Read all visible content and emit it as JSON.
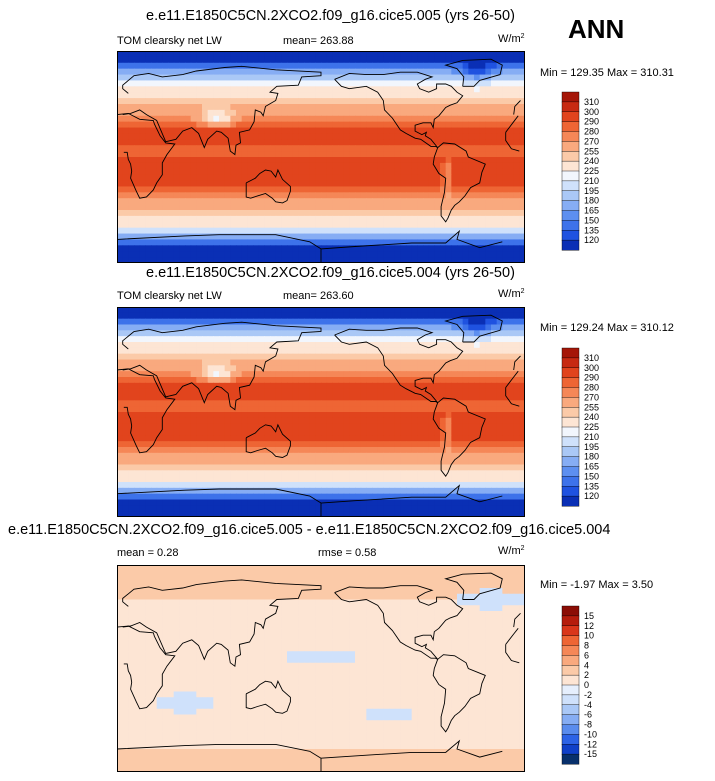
{
  "season": "ANN",
  "colors": {
    "abs_levels": [
      "#08306b",
      "#0a2fb5",
      "#1f52e0",
      "#3d72ea",
      "#5d8ff0",
      "#86adf4",
      "#aac8f6",
      "#cfe1fb",
      "#f2f6fd",
      "#fde5d4",
      "#fbcaa8",
      "#f9a97e",
      "#f58757",
      "#ee6534",
      "#e1441d",
      "#c72a12",
      "#a51608",
      "#7e0b04"
    ],
    "diff_levels": [
      "#08306b",
      "#1040c8",
      "#2d63e6",
      "#5a8ced",
      "#86adf3",
      "#aac8f6",
      "#cfe1fb",
      "#e6effd",
      "#fde5d4",
      "#fbcaa8",
      "#f9a97e",
      "#f58757",
      "#ee6534",
      "#d9361a",
      "#b51c0c",
      "#8b0d05"
    ]
  },
  "chart_data": [
    {
      "type": "heatmap",
      "title": "e.e11.E1850C5CN.2XCO2.f09_g16.cice5.005 (yrs 26-50)",
      "variable": "TOM clearsky net LW",
      "mean_label": "mean= 263.88",
      "units_base": "W/m",
      "units_exp": "2",
      "minmax": "Min = 129.35 Max = 310.31",
      "min": 129.35,
      "max": 310.31,
      "mean": 263.88,
      "colorbar_levels": [
        "310",
        "300",
        "290",
        "280",
        "270",
        "255",
        "240",
        "225",
        "210",
        "195",
        "180",
        "165",
        "150",
        "135",
        "120"
      ]
    },
    {
      "type": "heatmap",
      "title": "e.e11.E1850C5CN.2XCO2.f09_g16.cice5.004 (yrs 26-50)",
      "variable": "TOM clearsky net LW",
      "mean_label": "mean= 263.60",
      "units_base": "W/m",
      "units_exp": "2",
      "minmax": "Min = 129.24 Max = 310.12",
      "min": 129.24,
      "max": 310.12,
      "mean": 263.6,
      "colorbar_levels": [
        "310",
        "300",
        "290",
        "280",
        "270",
        "255",
        "240",
        "225",
        "210",
        "195",
        "180",
        "165",
        "150",
        "135",
        "120"
      ]
    },
    {
      "type": "heatmap",
      "title": "e.e11.E1850C5CN.2XCO2.f09_g16.cice5.005 - e.e11.E1850C5CN.2XCO2.f09_g16.cice5.004",
      "mean_label": "mean =  0.28",
      "rmse_label": "rmse =  0.58",
      "units_base": "W/m",
      "units_exp": "2",
      "minmax": "Min = -1.97 Max =  3.50",
      "min": -1.97,
      "max": 3.5,
      "mean": 0.28,
      "rmse": 0.58,
      "colorbar_levels": [
        "15",
        "12",
        "10",
        "8",
        "6",
        "4",
        "2",
        "0",
        "-2",
        "-4",
        "-6",
        "-8",
        "-10",
        "-12",
        "-15"
      ]
    }
  ]
}
